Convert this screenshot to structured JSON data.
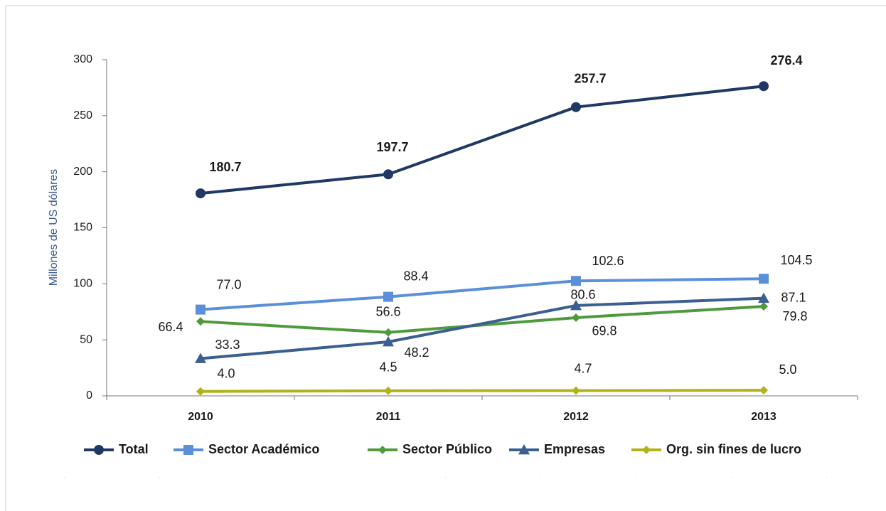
{
  "chart_data": {
    "type": "line",
    "y_label": "Millones de US dólares",
    "categories": [
      "2010",
      "2011",
      "2012",
      "2013"
    ],
    "ylim": [
      0,
      300
    ],
    "yticks": [
      0,
      50,
      100,
      150,
      200,
      250,
      300
    ],
    "legend": "bottom",
    "series": [
      {
        "name": "Total",
        "color": "#1f3864",
        "marker": "circle",
        "values": [
          180.7,
          197.7,
          257.7,
          276.4
        ]
      },
      {
        "name": "Sector Académico",
        "color": "#5b8fd9",
        "marker": "square",
        "values": [
          77.0,
          88.4,
          102.6,
          104.5
        ],
        "value_labels": [
          "77.0",
          "88.4",
          "102.6",
          "104.5"
        ]
      },
      {
        "name": "Sector Público",
        "color": "#4f9a3c",
        "marker": "diamond",
        "values": [
          66.4,
          56.6,
          69.8,
          79.8
        ]
      },
      {
        "name": "Empresas",
        "color": "#3c5f92",
        "marker": "triangle",
        "values": [
          33.3,
          48.2,
          80.6,
          87.1
        ]
      },
      {
        "name": "Org. sin fines de lucro",
        "color": "#b3b21c",
        "marker": "diamond",
        "values": [
          4.0,
          4.5,
          4.7,
          5.0
        ],
        "value_labels": [
          "4.0",
          "4.5",
          "4.7",
          "5.0"
        ]
      }
    ]
  }
}
